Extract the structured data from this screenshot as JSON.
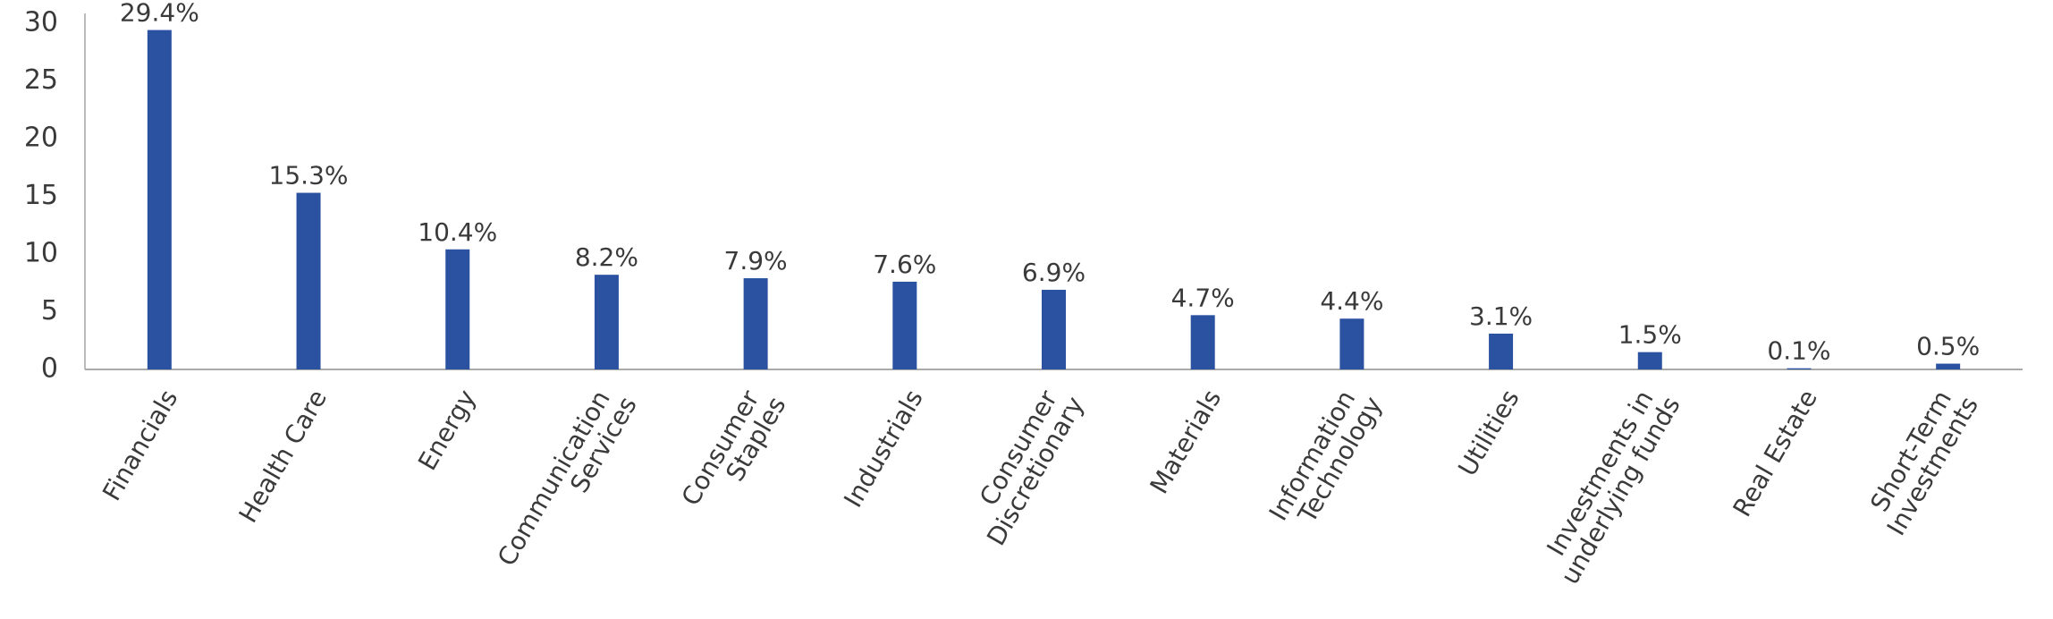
{
  "chart_data": {
    "type": "bar",
    "categories": [
      "Financials",
      "Health Care",
      "Energy",
      "Communication Services",
      "Consumer Staples",
      "Industrials",
      "Consumer Discretionary",
      "Materials",
      "Information Technology",
      "Utilities",
      "Investments in underlying funds",
      "Real Estate",
      "Short-Term Investments"
    ],
    "values": [
      29.4,
      15.3,
      10.4,
      8.2,
      7.9,
      7.6,
      6.9,
      4.7,
      4.4,
      3.1,
      1.5,
      0.1,
      0.5
    ],
    "value_labels": [
      "29.4%",
      "15.3%",
      "10.4%",
      "8.2%",
      "7.9%",
      "7.6%",
      "6.9%",
      "4.7%",
      "4.4%",
      "3.1%",
      "1.5%",
      "0.1%",
      "0.5%"
    ],
    "color": "#2b52a1",
    "ylim": [
      0,
      32
    ],
    "yticks": [
      0,
      5,
      10,
      15,
      20,
      25,
      30
    ],
    "grid": false
  }
}
